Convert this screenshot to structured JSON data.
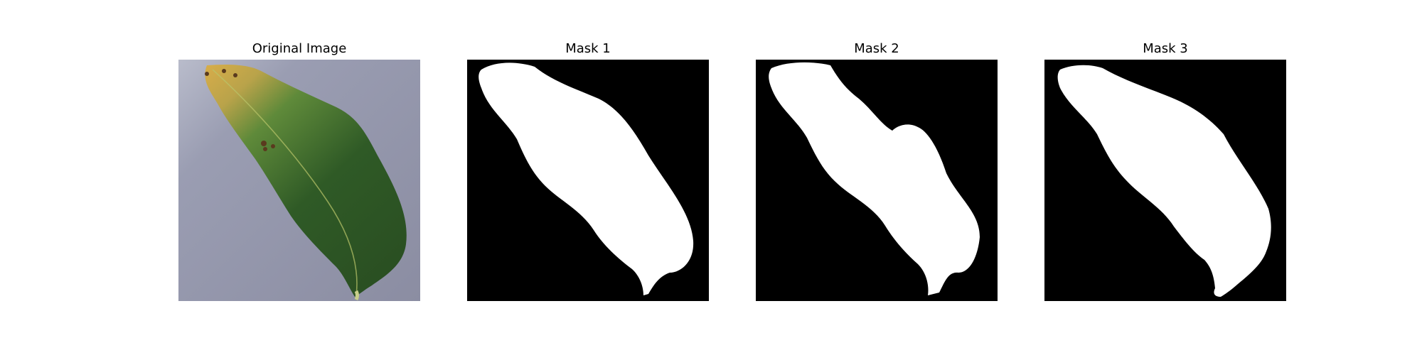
{
  "panels": [
    {
      "id": "original",
      "title": "Original Image"
    },
    {
      "id": "mask1",
      "title": "Mask 1"
    },
    {
      "id": "mask2",
      "title": "Mask 2"
    },
    {
      "id": "mask3",
      "title": "Mask 3"
    }
  ],
  "colors": {
    "background_surface": "#8c8ea3",
    "leaf_green": "#2f5a26",
    "leaf_yellow": "#c7a24a",
    "mask_background": "#000000",
    "mask_foreground": "#ffffff"
  }
}
